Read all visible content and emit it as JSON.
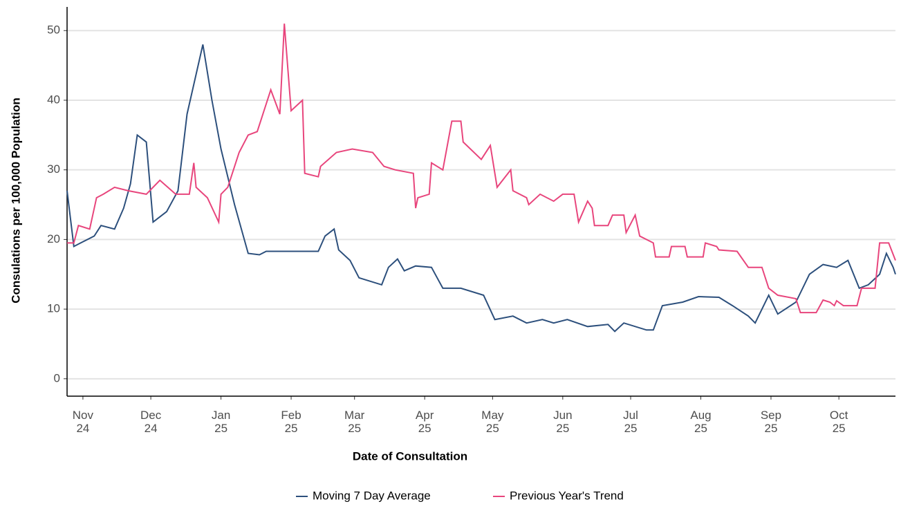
{
  "chart_data": {
    "type": "line",
    "x_label": "Date of Consultation",
    "y_label": "Consulations per 100,000 Population",
    "xlim": [
      -7,
      359
    ],
    "ylim": [
      -2.5,
      53.4
    ],
    "xticks": [
      {
        "value": 0,
        "label": "Nov 24"
      },
      {
        "value": 30,
        "label": "Dec 24"
      },
      {
        "value": 61,
        "label": "Jan 25"
      },
      {
        "value": 92,
        "label": "Feb 25"
      },
      {
        "value": 120,
        "label": "Mar 25"
      },
      {
        "value": 151,
        "label": "Apr 25"
      },
      {
        "value": 181,
        "label": "May 25"
      },
      {
        "value": 212,
        "label": "Jun 25"
      },
      {
        "value": 242,
        "label": "Jul 25"
      },
      {
        "value": 273,
        "label": "Aug 25"
      },
      {
        "value": 304,
        "label": "Sep 25"
      },
      {
        "value": 334,
        "label": "Oct 25"
      }
    ],
    "yticks": [
      0,
      10,
      20,
      30,
      40,
      50
    ],
    "grid": true,
    "legend": "bottom",
    "series": [
      {
        "name": "Moving 7 Day Average",
        "color": "#2c4f7c",
        "x": [
          -7,
          -4,
          -1,
          5,
          8,
          14,
          18,
          21,
          24,
          28,
          31,
          37,
          42,
          46,
          53,
          57,
          61,
          67,
          73,
          78,
          81,
          92,
          104,
          107,
          111,
          113,
          118,
          122,
          132,
          135,
          139,
          142,
          147,
          154,
          159,
          167,
          177,
          182,
          190,
          196,
          203,
          208,
          214,
          223,
          232,
          235,
          239,
          249,
          252,
          256,
          265,
          272,
          281,
          287,
          294,
          297,
          303,
          307,
          315,
          321,
          327,
          333,
          338,
          343,
          347,
          352,
          355,
          358,
          359
        ],
        "values": [
          27,
          19,
          19.5,
          20.5,
          22,
          21.5,
          24.5,
          28,
          35,
          34,
          22.5,
          24,
          27,
          38,
          48,
          40,
          33,
          25,
          18,
          17.8,
          18.3,
          18.3,
          18.3,
          20.5,
          21.5,
          18.5,
          17,
          14.5,
          13.5,
          16,
          17.2,
          15.5,
          16.2,
          16,
          13,
          13,
          12,
          8.5,
          9,
          8,
          8.5,
          8,
          8.5,
          7.5,
          7.8,
          6.8,
          8,
          7,
          7,
          10.5,
          11,
          11.8,
          11.7,
          10.5,
          9,
          8,
          12,
          9.3,
          11,
          15,
          16.4,
          16,
          17,
          13,
          13.5,
          15,
          18,
          16,
          15
        ]
      },
      {
        "name": "Previous Year's Trend",
        "color": "#e8457c",
        "x": [
          -7,
          -4,
          -2,
          3,
          6,
          9,
          14,
          20,
          28,
          34,
          41,
          47,
          49,
          50,
          55,
          60,
          61,
          64,
          69,
          73,
          77,
          83,
          87,
          89,
          92,
          97,
          98,
          104,
          105,
          112,
          119,
          128,
          133,
          138,
          146,
          147,
          148,
          153,
          154,
          159,
          163,
          167,
          168,
          176,
          180,
          183,
          189,
          190,
          196,
          197,
          202,
          208,
          212,
          217,
          219,
          223,
          225,
          226,
          232,
          234,
          239,
          240,
          244,
          246,
          252,
          253,
          259,
          260,
          266,
          267,
          274,
          275,
          280,
          281,
          289,
          294,
          300,
          303,
          307,
          315,
          317,
          324,
          327,
          330,
          332,
          333,
          336,
          342,
          344,
          350,
          352,
          356,
          359
        ],
        "values": [
          19.5,
          19.5,
          22,
          21.5,
          26,
          26.5,
          27.5,
          27,
          26.5,
          28.5,
          26.5,
          26.5,
          31,
          27.5,
          26,
          22.5,
          26.5,
          27.5,
          32.5,
          35,
          35.5,
          41.5,
          38,
          51,
          38.5,
          40,
          29.5,
          29,
          30.5,
          32.5,
          33,
          32.5,
          30.5,
          30,
          29.5,
          24.5,
          26,
          26.5,
          31,
          30,
          37,
          37,
          34,
          31.5,
          33.5,
          27.5,
          30,
          27,
          26,
          25,
          26.5,
          25.5,
          26.5,
          26.5,
          22.5,
          25.5,
          24.5,
          22,
          22,
          23.5,
          23.5,
          21,
          23.5,
          20.5,
          19.5,
          17.5,
          17.5,
          19,
          19,
          17.5,
          17.5,
          19.5,
          19,
          18.5,
          18.3,
          16,
          16,
          13,
          12,
          11.5,
          9.5,
          9.5,
          11.3,
          11,
          10.5,
          11.2,
          10.5,
          10.5,
          13,
          13,
          19.5,
          19.5,
          17
        ]
      }
    ]
  }
}
